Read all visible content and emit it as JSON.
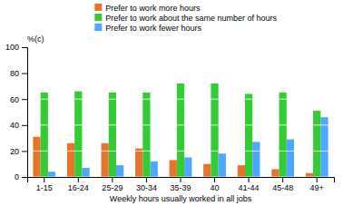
{
  "chart_data": {
    "type": "bar",
    "categories": [
      "1-15",
      "16-24",
      "25-29",
      "30-34",
      "35-39",
      "40",
      "41-44",
      "45-48",
      "49+"
    ],
    "series": [
      {
        "name": "Prefer to work more hours",
        "color": "#E8732A",
        "values": [
          31,
          26,
          26,
          22,
          13,
          10,
          9,
          6,
          3
        ]
      },
      {
        "name": "Prefer to work about the same number of hours",
        "color": "#33CC33",
        "values": [
          65,
          66,
          65,
          65,
          72,
          72,
          64,
          65,
          51
        ]
      },
      {
        "name": "Prefer to work fewer hours",
        "color": "#4DA6FF",
        "values": [
          4,
          7,
          9,
          12,
          15,
          18,
          27,
          29,
          46
        ]
      }
    ],
    "xlabel": "Weekly hours usually worked in all jobs",
    "ylabel": "%(c)",
    "ylim": [
      0,
      100
    ],
    "yticks": [
      0,
      20,
      40,
      60,
      80,
      100
    ],
    "grid": true,
    "legend": "top"
  }
}
